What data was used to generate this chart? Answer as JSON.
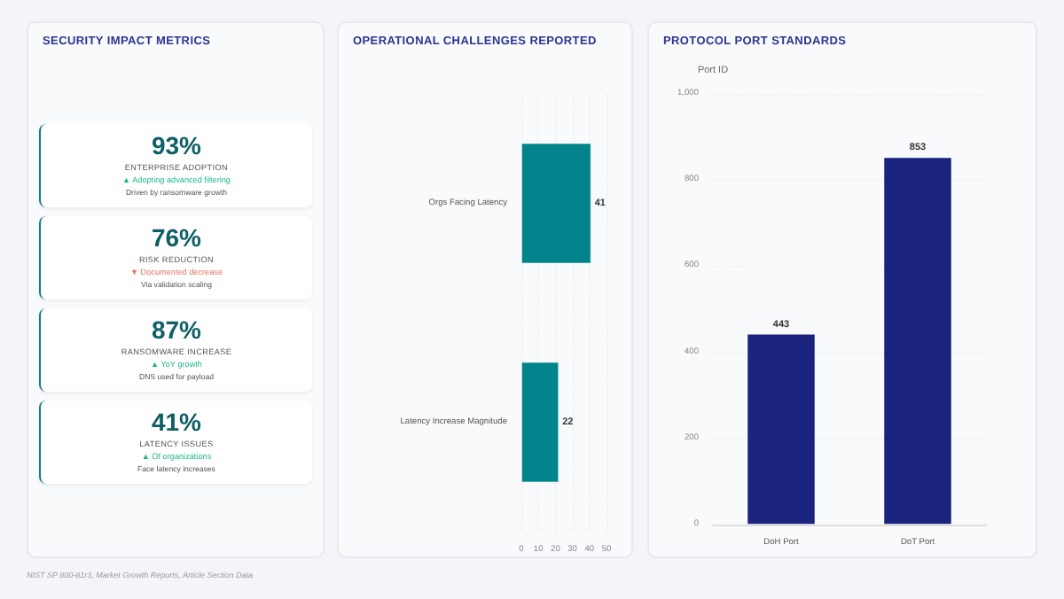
{
  "chart_data": [
    {
      "type": "other",
      "title": "SECURITY IMPACT METRICS",
      "annotations": [
        "93%",
        "ENTERPRISE ADOPTION",
        "▲ Adopting advanced filtering",
        "Driven by ransomware growth",
        "76%",
        "RISK REDUCTION",
        "▼ Documented decrease",
        "Via validation scaling",
        "87%",
        "RANSOMWARE INCREASE",
        "▲ YoY growth",
        "DNS used for payload",
        "41%",
        "LATENCY ISSUES",
        "▲ Of organizations",
        "Face latency increases",
        "NIST SP 800-81r3, Market Growth Reports, Article Section Data"
      ],
      "colors": [
        "#1bb98a",
        "#e8735a",
        "#1bb98a",
        "#1bb98a"
      ]
    },
    {
      "type": "bar",
      "orientation": "horizontal",
      "title": "OPERATIONAL CHALLENGES REPORTED",
      "categories": [
        "Orgs Facing Latency",
        "Latency Increase Magnitude"
      ],
      "values": [
        41,
        22
      ],
      "color": "#00838a",
      "xlim": [
        0,
        50
      ],
      "xticks": [
        0,
        10,
        20,
        30,
        40,
        50
      ],
      "grid": "x",
      "data_labels": true
    },
    {
      "type": "bar",
      "title": "PROTOCOL PORT STANDARDS",
      "ylabel": "Port ID",
      "categories": [
        "DoH Port",
        "DoT Port"
      ],
      "values": [
        443,
        853
      ],
      "color": "#1a237e",
      "ylim": [
        0,
        1000
      ],
      "yticks": [
        0,
        200,
        400,
        600,
        800,
        {
          "value": 1000,
          "label": "1,000"
        }
      ],
      "grid": "y",
      "data_labels": true
    }
  ]
}
